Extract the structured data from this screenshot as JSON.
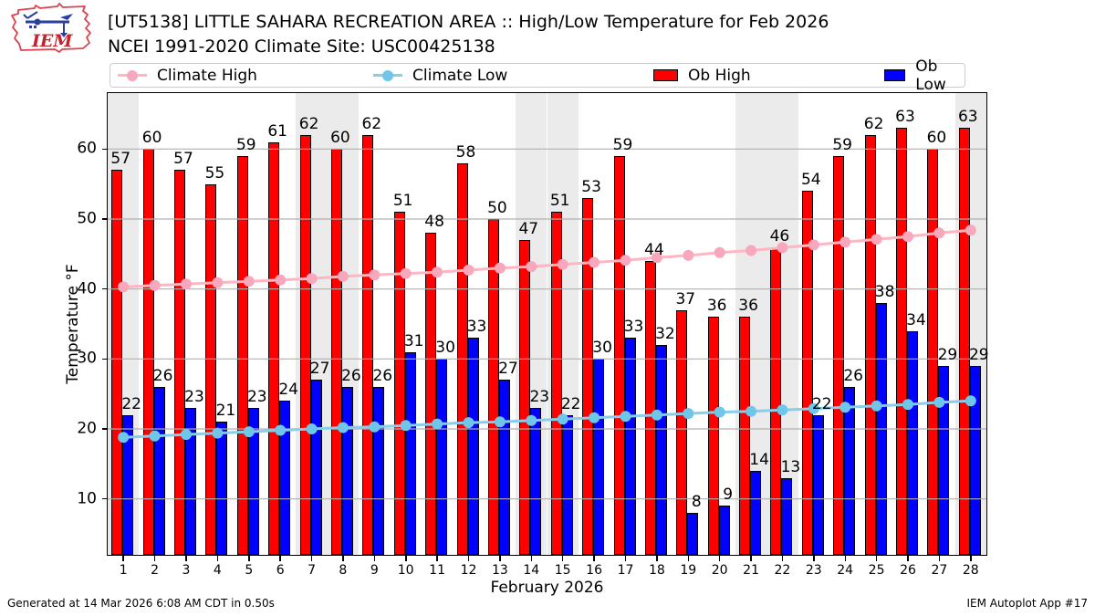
{
  "header": {
    "title_line1": "[UT5138] LITTLE SAHARA RECREATION AREA :: High/Low Temperature for Feb 2026",
    "title_line2": "NCEI 1991-2020 Climate Site: USC00425138",
    "logo_text": "IEM"
  },
  "legend": [
    {
      "label": "Climate High",
      "type": "line",
      "color": "#ffb6c1",
      "marker_color": "#f9a7bc"
    },
    {
      "label": "Climate Low",
      "type": "line",
      "color": "#87ceeb",
      "marker_color": "#6ec6e8"
    },
    {
      "label": "Ob High",
      "type": "swatch",
      "color": "#ff0000",
      "marker_color": "#ff0000"
    },
    {
      "label": "Ob Low",
      "type": "swatch",
      "color": "#0000ff",
      "marker_color": "#0000ff"
    }
  ],
  "footer": {
    "left": "Generated at 14 Mar 2026 6:08 AM CDT in 0.50s",
    "right": "IEM Autoplot App #17"
  },
  "chart_data": {
    "type": "bar",
    "title": "[UT5138] LITTLE SAHARA RECREATION AREA :: High/Low Temperature for Feb 2026",
    "subtitle": "NCEI 1991-2020 Climate Site: USC00425138",
    "xlabel": "February 2026",
    "ylabel": "Temperature °F",
    "ylim": [
      2,
      68
    ],
    "yticks": [
      10,
      20,
      30,
      40,
      50,
      60
    ],
    "grid": "horizontal",
    "legend_position": "top",
    "days": [
      1,
      2,
      3,
      4,
      5,
      6,
      7,
      8,
      9,
      10,
      11,
      12,
      13,
      14,
      15,
      16,
      17,
      18,
      19,
      20,
      21,
      22,
      23,
      24,
      25,
      26,
      27,
      28
    ],
    "weekend_days": [
      1,
      7,
      8,
      14,
      15,
      21,
      22,
      28
    ],
    "weekend_band_color": "#ebebeb",
    "series": [
      {
        "name": "Ob High",
        "type": "bar",
        "color": "#ff0000",
        "values": [
          57,
          60,
          57,
          55,
          59,
          61,
          62,
          60,
          62,
          51,
          48,
          58,
          50,
          47,
          51,
          53,
          59,
          44,
          37,
          36,
          36,
          46,
          54,
          59,
          62,
          63,
          60,
          63
        ]
      },
      {
        "name": "Ob Low",
        "type": "bar",
        "color": "#0000ff",
        "values": [
          22,
          26,
          23,
          21,
          23,
          24,
          27,
          26,
          26,
          31,
          30,
          33,
          27,
          23,
          22,
          30,
          33,
          32,
          8,
          9,
          14,
          13,
          22,
          26,
          38,
          34,
          29,
          29
        ]
      },
      {
        "name": "Climate High",
        "type": "line",
        "color": "#ffb6c1",
        "values": [
          40.3,
          40.5,
          40.7,
          40.9,
          41.1,
          41.3,
          41.5,
          41.8,
          42.0,
          42.2,
          42.4,
          42.7,
          43.0,
          43.2,
          43.5,
          43.8,
          44.1,
          44.5,
          44.8,
          45.2,
          45.5,
          45.9,
          46.3,
          46.7,
          47.1,
          47.5,
          48.0,
          48.4
        ]
      },
      {
        "name": "Climate Low",
        "type": "line",
        "color": "#87ceeb",
        "values": [
          18.8,
          19.0,
          19.2,
          19.4,
          19.6,
          19.8,
          20.0,
          20.2,
          20.3,
          20.5,
          20.7,
          20.9,
          21.0,
          21.2,
          21.4,
          21.6,
          21.8,
          22.0,
          22.2,
          22.4,
          22.5,
          22.7,
          22.9,
          23.1,
          23.3,
          23.5,
          23.8,
          24.0
        ]
      }
    ]
  }
}
